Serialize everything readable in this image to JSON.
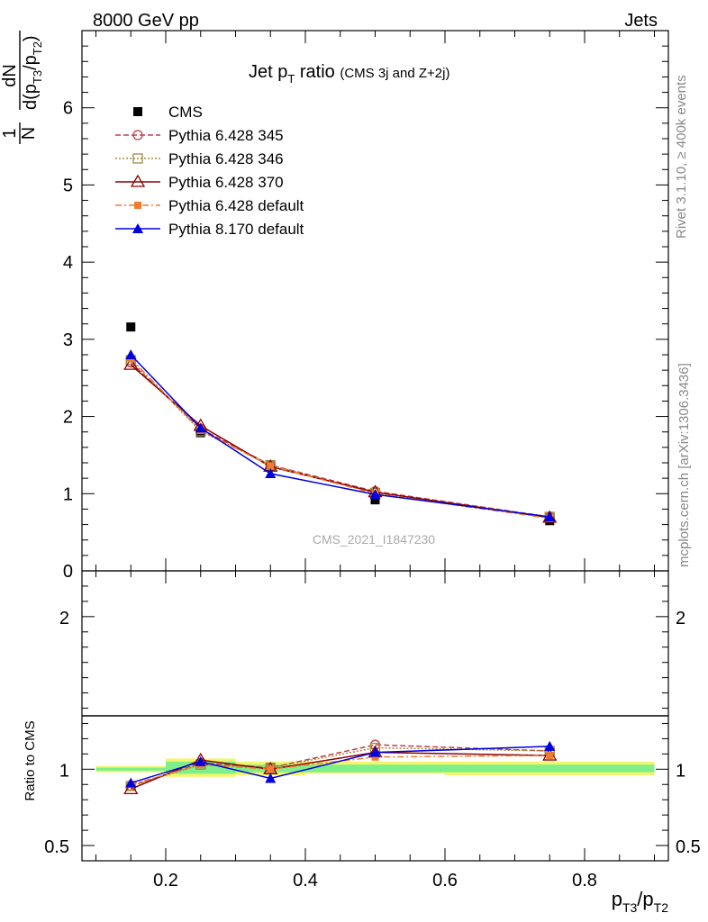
{
  "header": {
    "energy_label": "8000 GeV pp",
    "category_label": "Jets"
  },
  "side_labels": {
    "rivet": "Rivet 3.1.10, ≥ 400k events",
    "mcplots": "mcplots.cern.ch [arXiv:1306.3436]"
  },
  "watermark": "CMS_2021_I1847230",
  "title": {
    "main": "Jet p",
    "main_sub": "T",
    "main_rest": " ratio",
    "qualifier": "(CMS 3j and Z+2j)"
  },
  "y_axis_label": {
    "one": "1",
    "N": "N",
    "dN": "dN",
    "d_open": "d(p",
    "sub1": "T3",
    "slash": "/p",
    "sub2": "T2",
    "close": ")"
  },
  "ratio_axis_label": "Ratio to CMS",
  "x_axis_label": {
    "p1": "p",
    "sub1": "T3",
    "slash": "/p",
    "sub2": "T2"
  },
  "colors": {
    "cms": "#000000",
    "p345": "#c0404a",
    "p346": "#a08a40",
    "p370": "#8b0000",
    "p6def": "#f07c30",
    "p8def": "#0000e0",
    "band_green": "#7ef08a",
    "band_yellow": "#f5f56a"
  },
  "chart_data": [
    {
      "type": "line",
      "panel": "main",
      "xlim": [
        0.08,
        0.92
      ],
      "ylim": [
        0,
        7
      ],
      "yticks": [
        0,
        1,
        2,
        3,
        4,
        5,
        6
      ],
      "x": [
        0.15,
        0.25,
        0.35,
        0.5,
        0.75
      ],
      "series": [
        {
          "name": "CMS",
          "key": "cms",
          "style": "data",
          "values": [
            3.16,
            1.79,
            1.35,
            0.92,
            0.65
          ]
        },
        {
          "name": "Pythia 6.428 345",
          "key": "p345",
          "style": "circle-dash",
          "values": [
            2.7,
            1.84,
            1.37,
            1.03,
            0.7
          ]
        },
        {
          "name": "Pythia 6.428 346",
          "key": "p346",
          "style": "square-dot",
          "values": [
            2.73,
            1.81,
            1.37,
            1.01,
            0.7
          ]
        },
        {
          "name": "Pythia 6.428 370",
          "key": "p370",
          "style": "triangle-open-solid",
          "values": [
            2.67,
            1.88,
            1.35,
            1.02,
            0.69
          ]
        },
        {
          "name": "Pythia 6.428 default",
          "key": "p6def",
          "style": "square-dashdot",
          "values": [
            2.75,
            1.82,
            1.36,
            1.0,
            0.68
          ]
        },
        {
          "name": "Pythia 8.170 default",
          "key": "p8def",
          "style": "triangle-filled-solid",
          "values": [
            2.8,
            1.85,
            1.26,
            0.99,
            0.7
          ]
        }
      ]
    },
    {
      "type": "line",
      "panel": "ratio",
      "ylim": [
        0.4,
        2.3
      ],
      "yticks": [
        0.5,
        1,
        2
      ],
      "xticks": [
        0.2,
        0.4,
        0.6,
        0.8
      ],
      "x": [
        0.15,
        0.25,
        0.35,
        0.5,
        0.75
      ],
      "series": [
        {
          "name": "Pythia 6.428 345",
          "key": "p345",
          "style": "circle-dash",
          "values": [
            0.89,
            1.04,
            1.01,
            1.16,
            1.12
          ]
        },
        {
          "name": "Pythia 6.428 346",
          "key": "p346",
          "style": "square-dot",
          "values": [
            0.89,
            1.03,
            1.01,
            1.14,
            1.12
          ]
        },
        {
          "name": "Pythia 6.428 370",
          "key": "p370",
          "style": "triangle-open-solid",
          "values": [
            0.87,
            1.06,
            1.0,
            1.11,
            1.09
          ]
        },
        {
          "name": "Pythia 6.428 default",
          "key": "p6def",
          "style": "square-dashdot",
          "values": [
            0.9,
            1.03,
            1.0,
            1.08,
            1.09
          ]
        },
        {
          "name": "Pythia 8.170 default",
          "key": "p8def",
          "style": "triangle-filled-solid",
          "values": [
            0.91,
            1.05,
            0.94,
            1.11,
            1.15
          ]
        }
      ],
      "bands": [
        {
          "x0": 0.1,
          "x1": 0.2,
          "green": [
            0.99,
            1.01
          ],
          "yellow": [
            0.98,
            1.02
          ]
        },
        {
          "x0": 0.2,
          "x1": 0.3,
          "green": [
            0.97,
            1.05
          ],
          "yellow": [
            0.95,
            1.07
          ]
        },
        {
          "x0": 0.3,
          "x1": 0.4,
          "green": [
            0.98,
            1.03
          ],
          "yellow": [
            0.96,
            1.05
          ]
        },
        {
          "x0": 0.4,
          "x1": 0.6,
          "green": [
            0.98,
            1.03
          ],
          "yellow": [
            0.97,
            1.05
          ]
        },
        {
          "x0": 0.6,
          "x1": 0.9,
          "green": [
            0.98,
            1.03
          ],
          "yellow": [
            0.96,
            1.05
          ]
        }
      ]
    }
  ]
}
